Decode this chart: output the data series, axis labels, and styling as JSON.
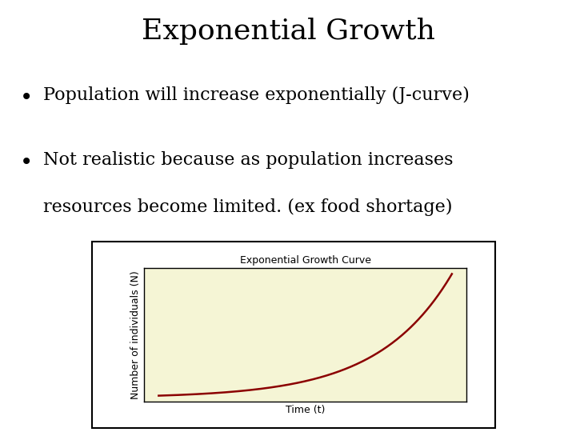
{
  "title": "Exponential Growth",
  "bullet1": "Population will increase exponentially (J-curve)",
  "bullet2_line1": "Not realistic because as population increases",
  "bullet2_line2": "resources become limited. (ex food shortage)",
  "graph_title": "Exponential Growth Curve",
  "xlabel": "Time (t)",
  "ylabel": "Number of individuals (N)",
  "background_color": "#ffffff",
  "plot_bg_color": "#f5f5d5",
  "curve_color": "#8b0000",
  "title_fontsize": 26,
  "bullet_fontsize": 16,
  "graph_title_fontsize": 9,
  "axis_label_fontsize": 9
}
